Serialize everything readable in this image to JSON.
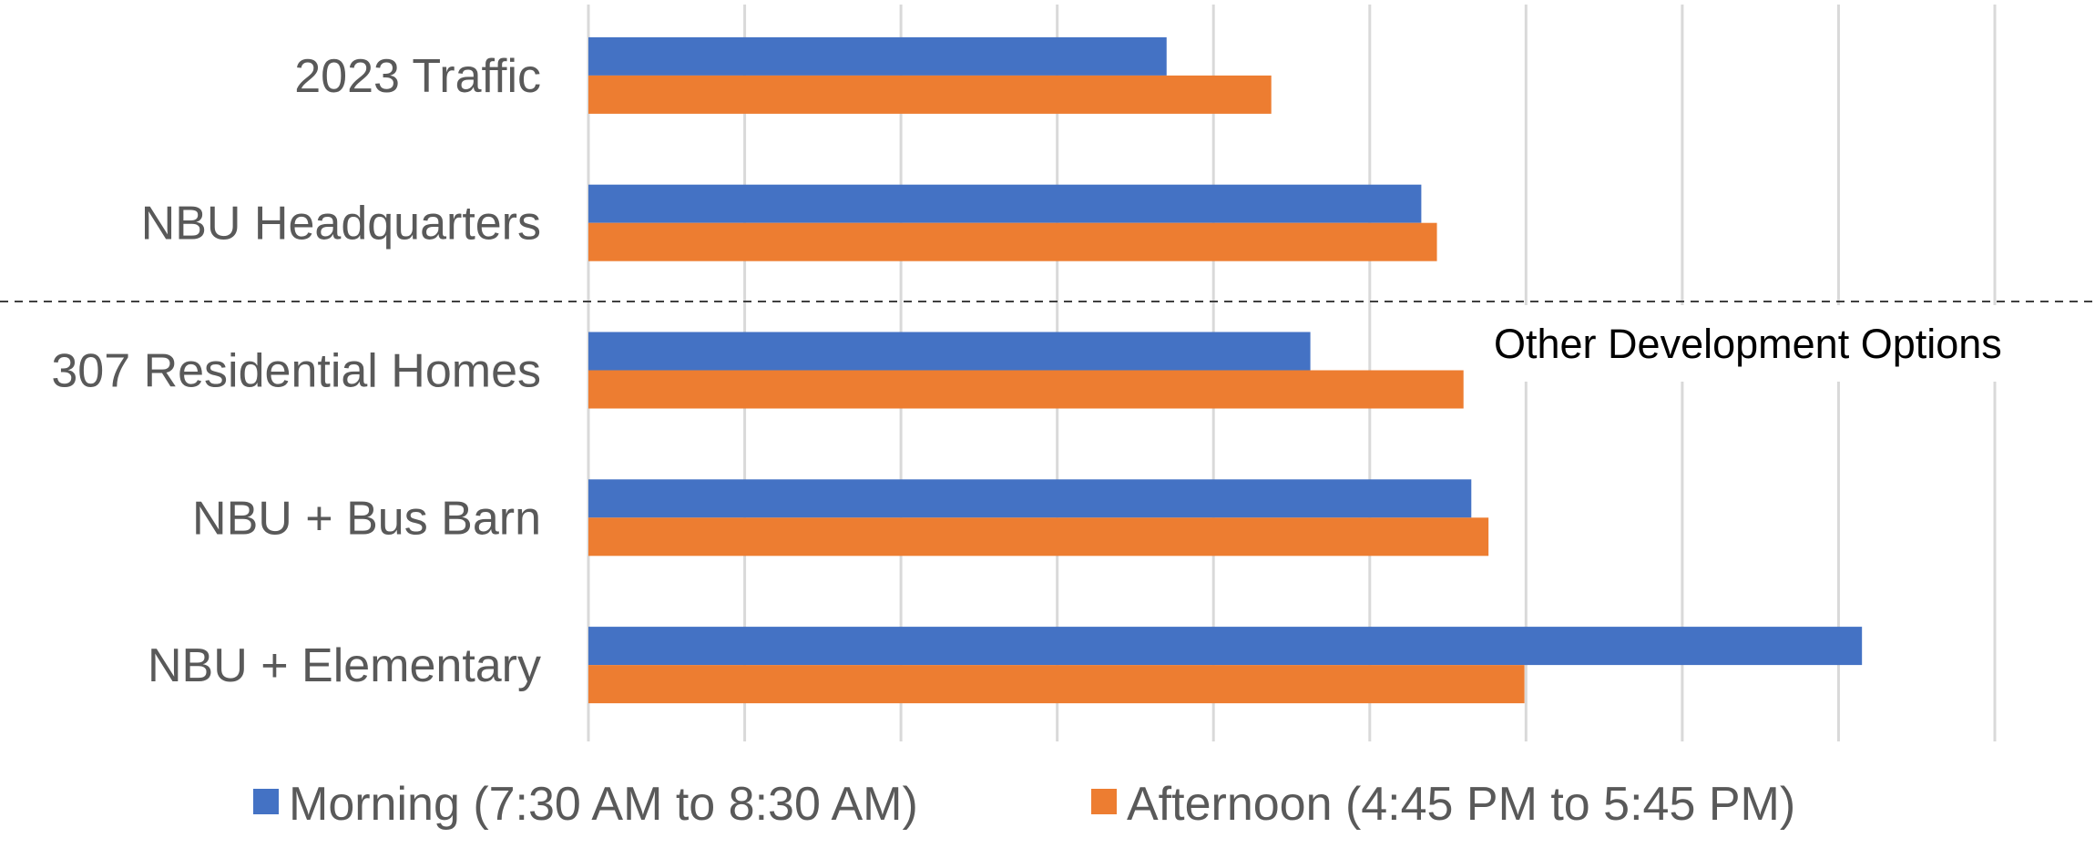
{
  "chart_data": {
    "type": "bar",
    "orientation": "horizontal",
    "categories": [
      "2023 Traffic",
      "NBU Headquarters",
      "307 Residential Homes",
      "NBU + Bus Barn",
      "NBU + Elementary"
    ],
    "series": [
      {
        "name": "Morning (7:30 AM to 8:30 AM)",
        "color": "#4472C4",
        "values": [
          370,
          533,
          462,
          565,
          815
        ]
      },
      {
        "name": "Afternoon (4:45 PM to 5:45 PM)",
        "color": "#ED7D31",
        "values": [
          437,
          543,
          560,
          576,
          599
        ]
      }
    ],
    "xlim": [
      0,
      900
    ],
    "x_gridlines": [
      0,
      100,
      200,
      300,
      400,
      500,
      600,
      700,
      800,
      900
    ],
    "x_tick_labels_shown": false,
    "grid": true,
    "legend": "bottom",
    "annotation": {
      "text": "Other Development Options",
      "separator": "dashed line between NBU Headquarters and 307 Residential Homes"
    }
  }
}
